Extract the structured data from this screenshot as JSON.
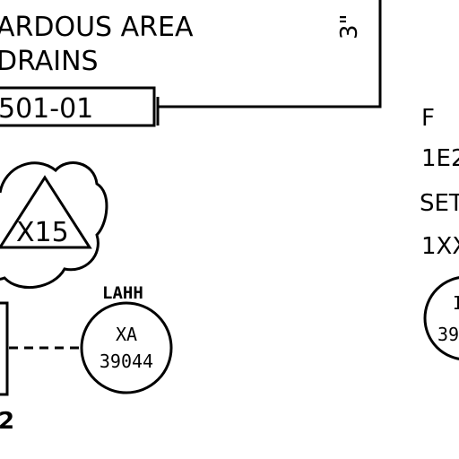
{
  "area_label": {
    "line1": "ARDOUS AREA",
    "line2": "DRAINS"
  },
  "vertical_label": "3\"",
  "drawing_ref": "501-01",
  "revision_flag": "X15",
  "instrument": {
    "function_tag": "LAHH",
    "type": "XA",
    "number": "39044"
  },
  "left_cut_label": "2",
  "right_column": {
    "line1": "F",
    "line2": "1E2",
    "line3": "SET",
    "line4": "1XX"
  },
  "right_bubble": {
    "top": "I",
    "bottom": "39"
  }
}
